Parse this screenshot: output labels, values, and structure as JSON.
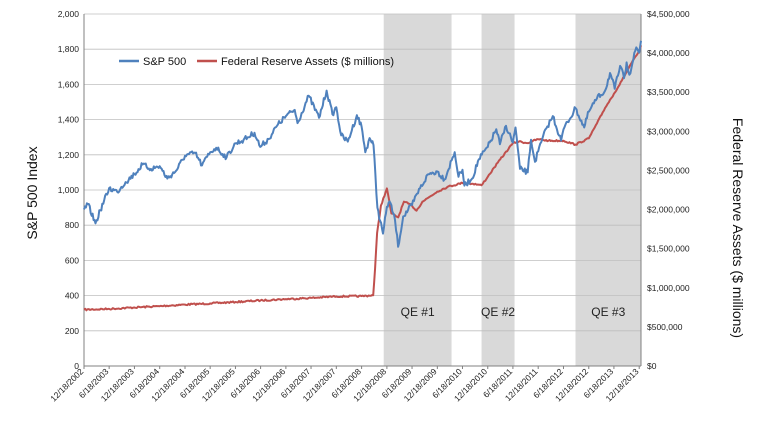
{
  "chart_data": {
    "type": "line",
    "title": "",
    "ylabel": "S&P 500 Index",
    "y2label": "Federal Reserve Assets ($ millions)",
    "ylim": [
      0,
      2000
    ],
    "y2lim": [
      0,
      4500000
    ],
    "grid": true,
    "legend_position": "top-left",
    "x_range": [
      "2002-12-18",
      "2013-12-31"
    ],
    "y_ticks": [
      "0",
      "200",
      "400",
      "600",
      "800",
      "1,000",
      "1,200",
      "1,400",
      "1,600",
      "1,800",
      "2,000"
    ],
    "y2_ticks": [
      "$0",
      "$500,000",
      "$1,000,000",
      "$1,500,000",
      "$2,000,000",
      "$2,500,000",
      "$3,000,000",
      "$3,500,000",
      "$4,000,000",
      "$4,500,000"
    ],
    "x_ticks": [
      {
        "label": "12/18/2002",
        "date": "2002-12-18"
      },
      {
        "label": "6/18/2003",
        "date": "2003-06-18"
      },
      {
        "label": "12/18/2003",
        "date": "2003-12-18"
      },
      {
        "label": "6/18/2004",
        "date": "2004-06-18"
      },
      {
        "label": "12/18/2004",
        "date": "2004-12-18"
      },
      {
        "label": "6/18/2005",
        "date": "2005-06-18"
      },
      {
        "label": "12/18/2005",
        "date": "2005-12-18"
      },
      {
        "label": "6/18/2006",
        "date": "2006-06-18"
      },
      {
        "label": "12/18/2006",
        "date": "2006-12-18"
      },
      {
        "label": "6/18/2007",
        "date": "2007-06-18"
      },
      {
        "label": "12/18/2007",
        "date": "2007-12-18"
      },
      {
        "label": "6/18/2008",
        "date": "2008-06-18"
      },
      {
        "label": "12/18/2008",
        "date": "2008-12-18"
      },
      {
        "label": "6/18/2009",
        "date": "2009-06-18"
      },
      {
        "label": "12/18/2009",
        "date": "2009-12-18"
      },
      {
        "label": "6/18/2010",
        "date": "2010-06-18"
      },
      {
        "label": "12/18/2010",
        "date": "2010-12-18"
      },
      {
        "label": "6/18/2011",
        "date": "2011-06-18"
      },
      {
        "label": "12/18/2011",
        "date": "2011-12-18"
      },
      {
        "label": "6/18/2012",
        "date": "2012-06-18"
      },
      {
        "label": "12/18/2012",
        "date": "2012-12-18"
      },
      {
        "label": "6/18/2013",
        "date": "2013-06-18"
      },
      {
        "label": "12/18/2013",
        "date": "2013-12-18"
      }
    ],
    "bands": [
      {
        "label": "QE #1",
        "start": "2008-11-25",
        "end": "2010-03-31",
        "color": "#d9d9d9"
      },
      {
        "label": "QE #2",
        "start": "2010-11-03",
        "end": "2011-06-30",
        "color": "#d9d9d9"
      },
      {
        "label": "QE #3",
        "start": "2012-09-13",
        "end": "2013-12-31",
        "color": "#d9d9d9"
      }
    ],
    "series": [
      {
        "name": "S&P 500",
        "axis": "left",
        "color": "#4f81bd",
        "points": [
          [
            "2002-12-18",
            890
          ],
          [
            "2003-01-15",
            920
          ],
          [
            "2003-03-11",
            810
          ],
          [
            "2003-04-15",
            885
          ],
          [
            "2003-06-18",
            1010
          ],
          [
            "2003-08-15",
            990
          ],
          [
            "2003-10-15",
            1045
          ],
          [
            "2003-12-18",
            1090
          ],
          [
            "2004-02-15",
            1145
          ],
          [
            "2004-04-15",
            1120
          ],
          [
            "2004-06-18",
            1135
          ],
          [
            "2004-08-12",
            1065
          ],
          [
            "2004-10-15",
            1110
          ],
          [
            "2004-12-18",
            1195
          ],
          [
            "2005-03-01",
            1210
          ],
          [
            "2005-04-20",
            1140
          ],
          [
            "2005-06-18",
            1215
          ],
          [
            "2005-08-01",
            1240
          ],
          [
            "2005-10-15",
            1185
          ],
          [
            "2005-12-18",
            1265
          ],
          [
            "2006-02-15",
            1285
          ],
          [
            "2006-05-05",
            1325
          ],
          [
            "2006-06-15",
            1245
          ],
          [
            "2006-08-15",
            1290
          ],
          [
            "2006-10-15",
            1365
          ],
          [
            "2006-12-18",
            1420
          ],
          [
            "2007-02-20",
            1455
          ],
          [
            "2007-03-12",
            1380
          ],
          [
            "2007-06-01",
            1535
          ],
          [
            "2007-08-15",
            1410
          ],
          [
            "2007-10-09",
            1565
          ],
          [
            "2007-11-20",
            1430
          ],
          [
            "2007-12-18",
            1470
          ],
          [
            "2008-01-22",
            1310
          ],
          [
            "2008-03-10",
            1275
          ],
          [
            "2008-05-15",
            1425
          ],
          [
            "2008-06-18",
            1360
          ],
          [
            "2008-07-15",
            1215
          ],
          [
            "2008-08-15",
            1295
          ],
          [
            "2008-09-12",
            1255
          ],
          [
            "2008-10-10",
            900
          ],
          [
            "2008-11-20",
            752
          ],
          [
            "2008-12-18",
            905
          ],
          [
            "2009-01-06",
            935
          ],
          [
            "2009-02-15",
            830
          ],
          [
            "2009-03-09",
            677
          ],
          [
            "2009-04-15",
            850
          ],
          [
            "2009-06-18",
            915
          ],
          [
            "2009-08-15",
            1010
          ],
          [
            "2009-10-15",
            1090
          ],
          [
            "2009-12-18",
            1105
          ],
          [
            "2010-02-08",
            1060
          ],
          [
            "2010-04-23",
            1215
          ],
          [
            "2010-05-20",
            1075
          ],
          [
            "2010-06-18",
            1115
          ],
          [
            "2010-07-02",
            1025
          ],
          [
            "2010-08-27",
            1065
          ],
          [
            "2010-10-15",
            1175
          ],
          [
            "2010-12-18",
            1245
          ],
          [
            "2011-02-18",
            1345
          ],
          [
            "2011-03-16",
            1260
          ],
          [
            "2011-04-29",
            1365
          ],
          [
            "2011-06-18",
            1270
          ],
          [
            "2011-07-07",
            1355
          ],
          [
            "2011-08-08",
            1120
          ],
          [
            "2011-10-03",
            1100
          ],
          [
            "2011-10-27",
            1285
          ],
          [
            "2011-11-25",
            1160
          ],
          [
            "2011-12-18",
            1220
          ],
          [
            "2012-02-15",
            1350
          ],
          [
            "2012-04-02",
            1420
          ],
          [
            "2012-06-01",
            1280
          ],
          [
            "2012-06-18",
            1345
          ],
          [
            "2012-09-14",
            1465
          ],
          [
            "2012-11-15",
            1355
          ],
          [
            "2012-12-18",
            1445
          ],
          [
            "2013-02-15",
            1520
          ],
          [
            "2013-04-15",
            1565
          ],
          [
            "2013-05-21",
            1665
          ],
          [
            "2013-06-24",
            1575
          ],
          [
            "2013-08-02",
            1705
          ],
          [
            "2013-08-30",
            1635
          ],
          [
            "2013-09-18",
            1725
          ],
          [
            "2013-10-08",
            1655
          ],
          [
            "2013-11-27",
            1810
          ],
          [
            "2013-12-18",
            1780
          ],
          [
            "2013-12-31",
            1848
          ]
        ]
      },
      {
        "name": "Federal Reserve Assets ($ millions)",
        "axis": "right",
        "color": "#c0504d",
        "points": [
          [
            "2002-12-18",
            720000
          ],
          [
            "2003-06-18",
            730000
          ],
          [
            "2003-12-18",
            748000
          ],
          [
            "2004-06-18",
            765000
          ],
          [
            "2004-12-18",
            785000
          ],
          [
            "2005-06-18",
            800000
          ],
          [
            "2005-12-18",
            818000
          ],
          [
            "2006-06-18",
            838000
          ],
          [
            "2006-12-18",
            855000
          ],
          [
            "2007-06-18",
            870000
          ],
          [
            "2007-12-18",
            890000
          ],
          [
            "2008-06-18",
            893000
          ],
          [
            "2008-09-10",
            905000
          ],
          [
            "2008-09-24",
            1250000
          ],
          [
            "2008-10-08",
            1700000
          ],
          [
            "2008-11-05",
            2050000
          ],
          [
            "2008-12-18",
            2270000
          ],
          [
            "2009-01-20",
            1950000
          ],
          [
            "2009-03-10",
            1900000
          ],
          [
            "2009-04-20",
            2100000
          ],
          [
            "2009-06-18",
            2050000
          ],
          [
            "2009-07-20",
            1985000
          ],
          [
            "2009-09-01",
            2100000
          ],
          [
            "2009-12-18",
            2230000
          ],
          [
            "2010-03-01",
            2290000
          ],
          [
            "2010-06-18",
            2340000
          ],
          [
            "2010-09-01",
            2330000
          ],
          [
            "2010-11-03",
            2310000
          ],
          [
            "2010-12-18",
            2420000
          ],
          [
            "2011-03-01",
            2600000
          ],
          [
            "2011-06-18",
            2850000
          ],
          [
            "2011-08-01",
            2870000
          ],
          [
            "2011-10-01",
            2850000
          ],
          [
            "2011-12-18",
            2900000
          ],
          [
            "2012-03-01",
            2880000
          ],
          [
            "2012-06-18",
            2880000
          ],
          [
            "2012-09-13",
            2830000
          ],
          [
            "2012-12-18",
            2910000
          ],
          [
            "2013-02-15",
            3100000
          ],
          [
            "2013-04-15",
            3300000
          ],
          [
            "2013-06-18",
            3480000
          ],
          [
            "2013-08-15",
            3650000
          ],
          [
            "2013-10-15",
            3850000
          ],
          [
            "2013-12-18",
            4020000
          ],
          [
            "2013-12-31",
            4100000
          ]
        ]
      }
    ]
  }
}
